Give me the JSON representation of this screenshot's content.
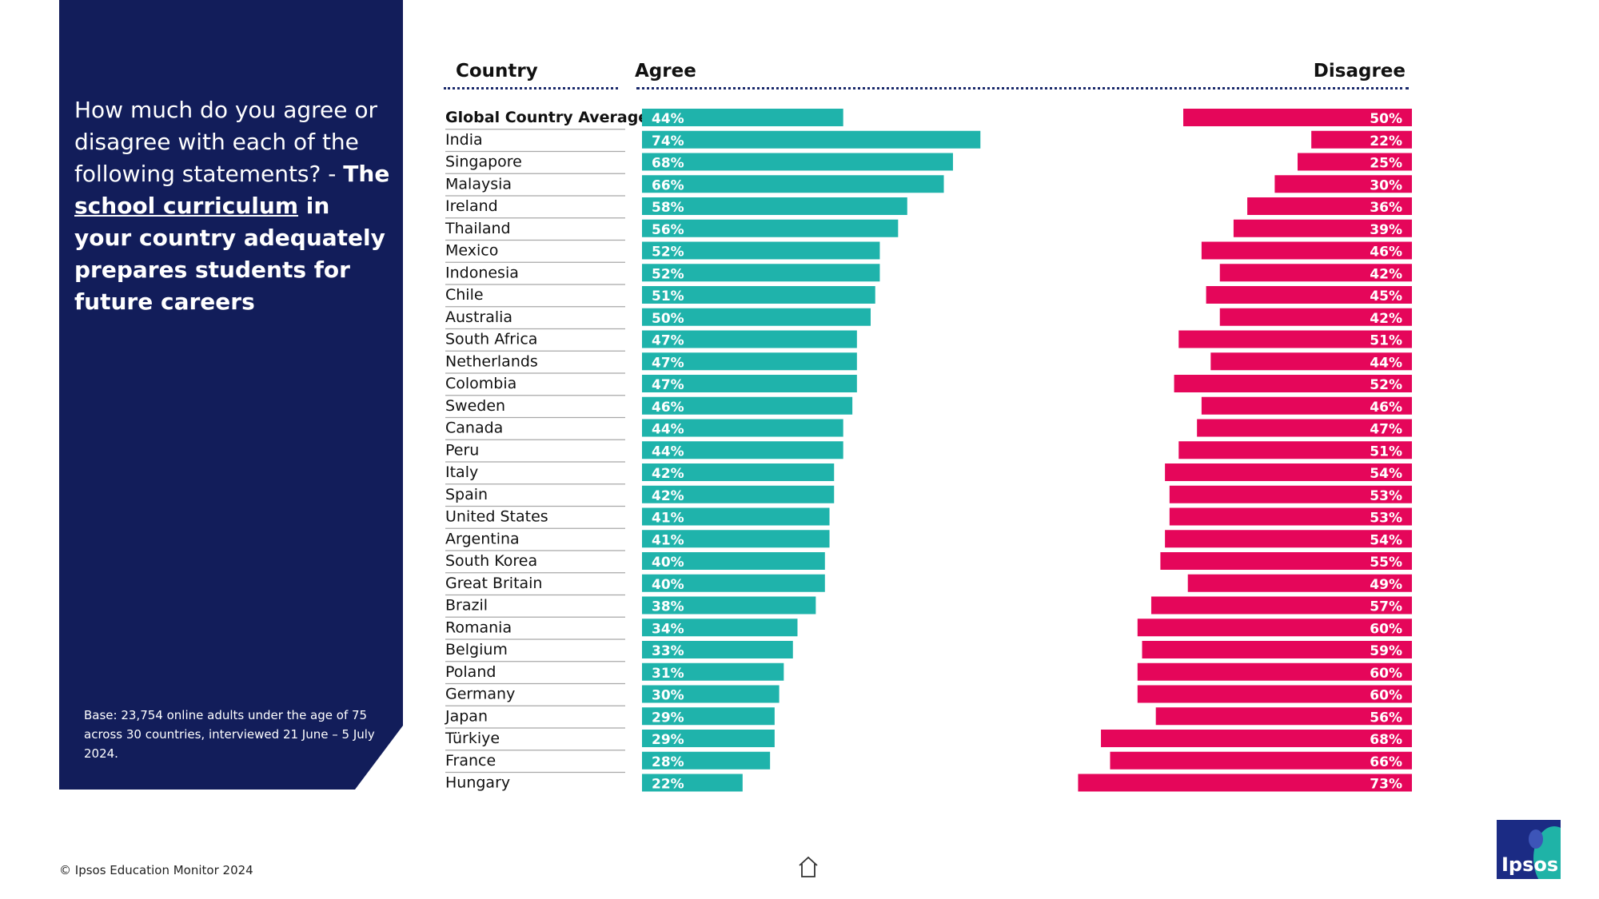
{
  "sidebar": {
    "question_prefix": "How much do you agree or disagree with each of the following statements? - ",
    "question_the": "The",
    "question_underline": "school curriculum",
    "question_suffix": " in your country adequately prepares students for future careers",
    "base_note": "Base: 23,754 online adults under the age of 75 across 30 countries, interviewed 21 June – 5 July 2024."
  },
  "footer": {
    "copyright": "© Ipsos Education Monitor 2024",
    "logo_text": "Ipsos",
    "home_icon": "home-icon"
  },
  "colors": {
    "agree": "#1fb3ab",
    "disagree": "#e5065a",
    "panel": "#121d5a"
  },
  "chart_data": {
    "type": "bar",
    "headers": {
      "country": "Country",
      "agree": "Agree",
      "disagree": "Disagree"
    },
    "series": [
      {
        "name": "Agree",
        "key": "agree"
      },
      {
        "name": "Disagree",
        "key": "disagree"
      }
    ],
    "rows": [
      {
        "country": "Global Country Average",
        "agree": 44,
        "disagree": 50,
        "agree_label": "44%",
        "disagree_label": "50%"
      },
      {
        "country": "India",
        "agree": 74,
        "disagree": 22,
        "agree_label": "74%",
        "disagree_label": "22%"
      },
      {
        "country": "Singapore",
        "agree": 68,
        "disagree": 25,
        "agree_label": "68%",
        "disagree_label": "25%"
      },
      {
        "country": "Malaysia",
        "agree": 66,
        "disagree": 30,
        "agree_label": "66%",
        "disagree_label": "30%"
      },
      {
        "country": "Ireland",
        "agree": 58,
        "disagree": 36,
        "agree_label": "58%",
        "disagree_label": "36%"
      },
      {
        "country": "Thailand",
        "agree": 56,
        "disagree": 39,
        "agree_label": "56%",
        "disagree_label": "39%"
      },
      {
        "country": "Mexico",
        "agree": 52,
        "disagree": 46,
        "agree_label": "52%",
        "disagree_label": "46%"
      },
      {
        "country": "Indonesia",
        "agree": 52,
        "disagree": 42,
        "agree_label": "52%",
        "disagree_label": "42%"
      },
      {
        "country": "Chile",
        "agree": 51,
        "disagree": 45,
        "agree_label": "51%",
        "disagree_label": "45%"
      },
      {
        "country": "Australia",
        "agree": 50,
        "disagree": 42,
        "agree_label": "50%",
        "disagree_label": "42%"
      },
      {
        "country": "South Africa",
        "agree": 47,
        "disagree": 51,
        "agree_label": "47%",
        "disagree_label": "51%"
      },
      {
        "country": "Netherlands",
        "agree": 47,
        "disagree": 44,
        "agree_label": "47%",
        "disagree_label": "44%"
      },
      {
        "country": "Colombia",
        "agree": 47,
        "disagree": 52,
        "agree_label": "47%",
        "disagree_label": "52%"
      },
      {
        "country": "Sweden",
        "agree": 46,
        "disagree": 46,
        "agree_label": "46%",
        "disagree_label": "46%"
      },
      {
        "country": "Canada",
        "agree": 44,
        "disagree": 47,
        "agree_label": "44%",
        "disagree_label": "47%"
      },
      {
        "country": "Peru",
        "agree": 44,
        "disagree": 51,
        "agree_label": "44%",
        "disagree_label": "51%"
      },
      {
        "country": "Italy",
        "agree": 42,
        "disagree": 54,
        "agree_label": "42%",
        "disagree_label": "54%"
      },
      {
        "country": "Spain",
        "agree": 42,
        "disagree": 53,
        "agree_label": "42%",
        "disagree_label": "53%"
      },
      {
        "country": "United States",
        "agree": 41,
        "disagree": 53,
        "agree_label": "41%",
        "disagree_label": "53%"
      },
      {
        "country": "Argentina",
        "agree": 41,
        "disagree": 54,
        "agree_label": "41%",
        "disagree_label": "54%"
      },
      {
        "country": "South Korea",
        "agree": 40,
        "disagree": 55,
        "agree_label": "40%",
        "disagree_label": "55%"
      },
      {
        "country": "Great Britain",
        "agree": 40,
        "disagree": 49,
        "agree_label": "40%",
        "disagree_label": "49%"
      },
      {
        "country": "Brazil",
        "agree": 38,
        "disagree": 57,
        "agree_label": "38%",
        "disagree_label": "57%"
      },
      {
        "country": "Romania",
        "agree": 34,
        "disagree": 60,
        "agree_label": "34%",
        "disagree_label": "60%"
      },
      {
        "country": "Belgium",
        "agree": 33,
        "disagree": 59,
        "agree_label": "33%",
        "disagree_label": "59%"
      },
      {
        "country": "Poland",
        "agree": 31,
        "disagree": 60,
        "agree_label": "31%",
        "disagree_label": "60%"
      },
      {
        "country": "Germany",
        "agree": 30,
        "disagree": 60,
        "agree_label": "30%",
        "disagree_label": "60%"
      },
      {
        "country": "Japan",
        "agree": 29,
        "disagree": 56,
        "agree_label": "29%",
        "disagree_label": "56%"
      },
      {
        "country": "Türkiye",
        "agree": 29,
        "disagree": 68,
        "agree_label": "29%",
        "disagree_label": "68%"
      },
      {
        "country": "France",
        "agree": 28,
        "disagree": 66,
        "agree_label": "28%",
        "disagree_label": "66%"
      },
      {
        "country": "Hungary",
        "agree": 22,
        "disagree": 73,
        "agree_label": "22%",
        "disagree_label": "73%"
      }
    ],
    "xlim": [
      0,
      100
    ],
    "legend": "none",
    "grid": false,
    "bold_first_row": true
  }
}
